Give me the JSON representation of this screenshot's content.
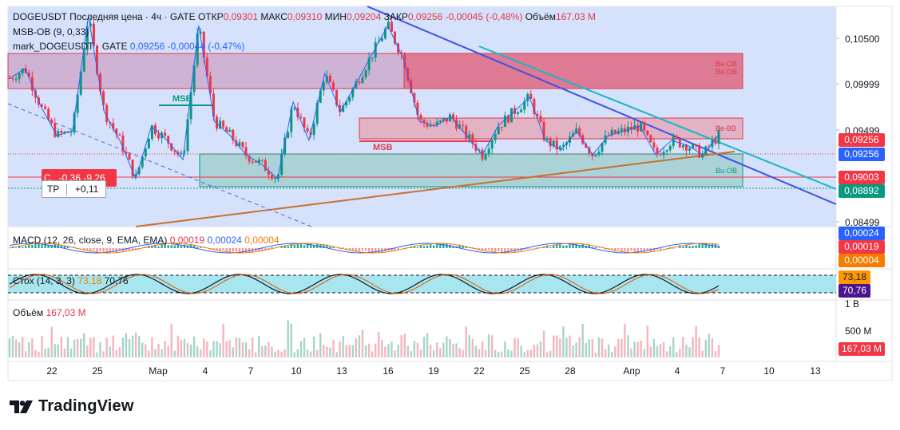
{
  "header": {
    "symbol": "DOGEUSDT",
    "price_type": "Последняя цена",
    "interval": "4ч",
    "exchange": "GATE",
    "open_label": "ОТКР",
    "open_value": "0,09301",
    "high_label": "МАКС",
    "high_value": "0,09310",
    "low_label": "МИН",
    "low_value": "0,09204",
    "close_label": "ЗАКР",
    "close_value": "0,09256",
    "change": "-0,00045 (-0,48%)",
    "volume_label": "Объём",
    "volume_value": "167,03 M"
  },
  "indicators": {
    "msb_ob": "MSB-OB (9, 0,33)",
    "mark_name": "mark_DOGEUSDT · GATE",
    "mark_value": "0,09256",
    "mark_change": "-0,00044 (-0,47%)"
  },
  "macd": {
    "legend": "MACD (12, 26, close, 9, EMA, EMA)",
    "hist": "0,00019",
    "macd": "0,00024",
    "signal": "0,00004"
  },
  "stoch": {
    "legend": "Стох (14, 3, 3)",
    "k": "73,18",
    "d": "70,76"
  },
  "volume": {
    "legend": "Объём",
    "value": "167,03 M"
  },
  "chart_annotations": {
    "msb_left": "MSB",
    "msb_right": "MSB",
    "be_ob_1": "Be-OB",
    "be_ob_2": "Be-OB",
    "be_bb": "Be-BB",
    "bu_ob": "Bu-OB",
    "tp_label": "TP",
    "tp_value": "+0,11",
    "sl_value": "С...-0,36 -9,26"
  },
  "price_axis": {
    "ticks": [
      "0,10500",
      "0,09999",
      "0,09499",
      "0,08499"
    ],
    "tags": [
      {
        "value": "0,09256",
        "color": "#f23645"
      },
      {
        "value": "0,09256",
        "color": "#2962ff"
      },
      {
        "value": "0,09003",
        "color": "#f23645"
      },
      {
        "value": "0,08892",
        "color": "#089981"
      }
    ]
  },
  "macd_axis": {
    "tags": [
      {
        "value": "0,00024",
        "color": "#2962ff"
      },
      {
        "value": "0,00019",
        "color": "#f23645"
      },
      {
        "value": "0,00004",
        "color": "#f57c00"
      }
    ]
  },
  "stoch_axis": {
    "tags": [
      {
        "value": "73,18",
        "color": "#ff9800"
      },
      {
        "value": "70,76",
        "color": "#4a148c"
      }
    ]
  },
  "volume_axis": {
    "ticks": [
      "1 B",
      "500 M"
    ],
    "tag": {
      "value": "167,03 M",
      "color": "#f23645"
    }
  },
  "time_axis": [
    "22",
    "25",
    "Мар",
    "4",
    "7",
    "10",
    "13",
    "16",
    "19",
    "22",
    "25",
    "28",
    "Апр",
    "4",
    "7",
    "10",
    "13"
  ],
  "brand": "TradingView",
  "chart_data": {
    "type": "candlestick",
    "title": "DOGEUSDT Последняя цена · 4ч · GATE",
    "x": [
      "22",
      "25",
      "Мар",
      "4",
      "7",
      "10",
      "13",
      "16",
      "19",
      "22",
      "25",
      "28",
      "Апр",
      "4",
      "7",
      "10",
      "13"
    ],
    "ylim": [
      0.083,
      0.106
    ],
    "close_path": [
      {
        "x": "20",
        "y": 0.0985
      },
      {
        "x": "21",
        "y": 0.0995
      },
      {
        "x": "22",
        "y": 0.0955
      },
      {
        "x": "23",
        "y": 0.0925
      },
      {
        "x": "24",
        "y": 0.093
      },
      {
        "x": "25",
        "y": 0.105
      },
      {
        "x": "26",
        "y": 0.095
      },
      {
        "x": "27",
        "y": 0.092
      },
      {
        "x": "28",
        "y": 0.088
      },
      {
        "x": "Мар",
        "y": 0.0935
      },
      {
        "x": "2",
        "y": 0.092
      },
      {
        "x": "3",
        "y": 0.09
      },
      {
        "x": "4",
        "y": 0.104
      },
      {
        "x": "5",
        "y": 0.094
      },
      {
        "x": "6",
        "y": 0.0925
      },
      {
        "x": "7",
        "y": 0.0905
      },
      {
        "x": "8",
        "y": 0.0895
      },
      {
        "x": "9",
        "y": 0.088
      },
      {
        "x": "10",
        "y": 0.096
      },
      {
        "x": "11",
        "y": 0.092
      },
      {
        "x": "12",
        "y": 0.099
      },
      {
        "x": "13",
        "y": 0.095
      },
      {
        "x": "14",
        "y": 0.098
      },
      {
        "x": "15",
        "y": 0.101
      },
      {
        "x": "16",
        "y": 0.104
      },
      {
        "x": "17",
        "y": 0.1005
      },
      {
        "x": "18",
        "y": 0.094
      },
      {
        "x": "19",
        "y": 0.0935
      },
      {
        "x": "20",
        "y": 0.0945
      },
      {
        "x": "21",
        "y": 0.0925
      },
      {
        "x": "22",
        "y": 0.0905
      },
      {
        "x": "23",
        "y": 0.0935
      },
      {
        "x": "24",
        "y": 0.095
      },
      {
        "x": "25",
        "y": 0.0965
      },
      {
        "x": "26",
        "y": 0.092
      },
      {
        "x": "27",
        "y": 0.091
      },
      {
        "x": "28",
        "y": 0.093
      },
      {
        "x": "29",
        "y": 0.0905
      },
      {
        "x": "30",
        "y": 0.0925
      },
      {
        "x": "31",
        "y": 0.093
      },
      {
        "x": "Апр",
        "y": 0.0935
      },
      {
        "x": "2",
        "y": 0.0905
      },
      {
        "x": "3",
        "y": 0.092
      },
      {
        "x": "4",
        "y": 0.0915
      },
      {
        "x": "5",
        "y": 0.0905
      },
      {
        "x": "6",
        "y": 0.09256
      }
    ],
    "last": {
      "open": 0.09301,
      "high": 0.0931,
      "low": 0.09204,
      "close": 0.09256
    },
    "zones": [
      {
        "name": "Be-OB",
        "top": 0.1032,
        "bottom": 0.0992
      },
      {
        "name": "Be-BB",
        "top": 0.0962,
        "bottom": 0.0942
      },
      {
        "name": "Bu-OB",
        "top": 0.0925,
        "bottom": 0.0889
      }
    ],
    "levels": [
      0.09256,
      0.09003,
      0.08892
    ],
    "volume_ylim": [
      0,
      1000
    ],
    "stoch_k": 73.18,
    "stoch_d": 70.76
  }
}
